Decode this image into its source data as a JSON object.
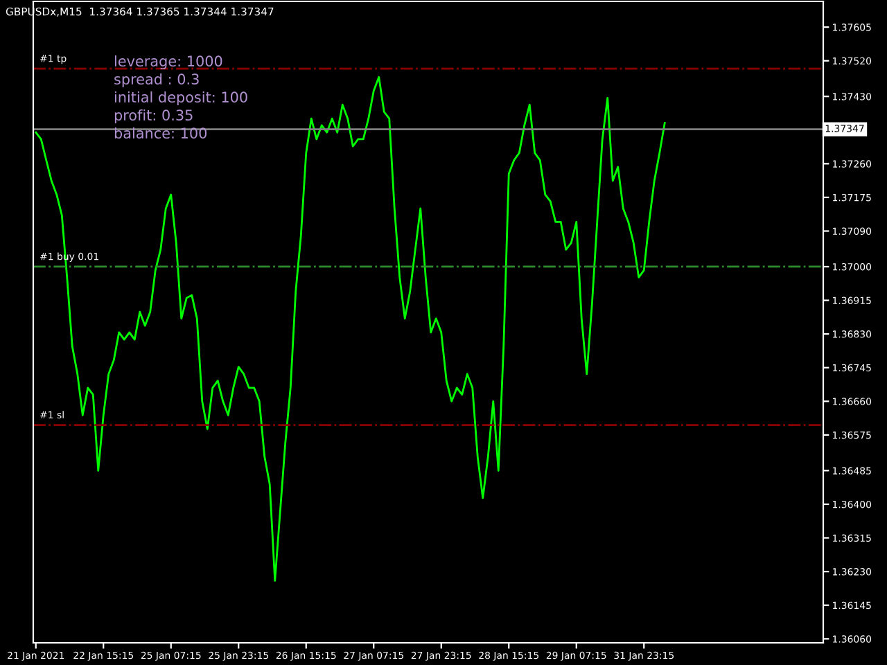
{
  "chart_data": {
    "type": "line",
    "categories": [
      "21 Jan 2021",
      null,
      null,
      null,
      null,
      null,
      null,
      null,
      null,
      null,
      null,
      null,
      null,
      "22 Jan 15:15",
      null,
      null,
      null,
      null,
      null,
      null,
      null,
      null,
      null,
      null,
      null,
      null,
      "25 Jan 07:15",
      null,
      null,
      null,
      null,
      null,
      null,
      null,
      null,
      null,
      null,
      null,
      null,
      "25 Jan 23:15",
      null,
      null,
      null,
      null,
      null,
      null,
      null,
      null,
      null,
      null,
      null,
      null,
      "26 Jan 15:15",
      null,
      null,
      null,
      null,
      null,
      null,
      null,
      null,
      null,
      null,
      null,
      null,
      "27 Jan 07:15",
      null,
      null,
      null,
      null,
      null,
      null,
      null,
      null,
      null,
      null,
      null,
      null,
      "27 Jan 23:15",
      null,
      null,
      null,
      null,
      null,
      null,
      null,
      null,
      null,
      null,
      null,
      null,
      "28 Jan 15:15",
      null,
      null,
      null,
      null,
      null,
      null,
      null,
      null,
      null,
      null,
      null,
      null,
      "29 Jan 07:15",
      null,
      null,
      null,
      null,
      null,
      null,
      null,
      null,
      null,
      null,
      null,
      null,
      "31 Jan 23:15",
      null,
      null,
      null,
      null,
      null,
      null,
      null,
      null,
      null,
      null,
      null,
      null,
      null,
      null,
      null,
      null,
      null,
      null,
      null,
      null,
      null,
      null,
      null,
      null,
      null,
      null,
      null,
      null,
      null,
      null,
      null,
      null,
      null,
      null
    ],
    "series": [
      {
        "color": "#00ff00",
        "values": [
          1.37339,
          1.37322,
          1.37269,
          1.37217,
          1.37182,
          1.3713,
          1.36973,
          1.36799,
          1.36729,
          1.36625,
          1.36694,
          1.36677,
          1.36485,
          1.36625,
          1.36729,
          1.36764,
          1.36834,
          1.36816,
          1.36834,
          1.36816,
          1.36886,
          1.36851,
          1.36886,
          1.36991,
          1.37043,
          1.37147,
          1.37182,
          1.3706,
          1.36869,
          1.36921,
          1.36928,
          1.36869,
          1.3666,
          1.3659,
          1.36694,
          1.36712,
          1.3666,
          1.36625,
          1.36694,
          1.36747,
          1.36729,
          1.36694,
          1.36694,
          1.3666,
          1.3652,
          1.3645,
          1.36207,
          1.36381,
          1.36555,
          1.36694,
          1.36938,
          1.37078,
          1.37287,
          1.37374,
          1.37322,
          1.37357,
          1.37339,
          1.37374,
          1.37339,
          1.37409,
          1.37374,
          1.37304,
          1.37322,
          1.37322,
          1.37374,
          1.37444,
          1.37479,
          1.37391,
          1.37374,
          1.37147,
          1.36973,
          1.36869,
          1.36938,
          1.37043,
          1.37147,
          1.36973,
          1.36834,
          1.36869,
          1.36834,
          1.36712,
          1.3666,
          1.36694,
          1.36677,
          1.36729,
          1.36694,
          1.3652,
          1.36416,
          1.3652,
          1.3666,
          1.36485,
          1.36799,
          1.37235,
          1.37269,
          1.37287,
          1.37357,
          1.37409,
          1.37287,
          1.37269,
          1.37182,
          1.37165,
          1.37113,
          1.37113,
          1.37043,
          1.3706,
          1.37113,
          1.36869,
          1.36729,
          1.36904,
          1.37113,
          1.37322,
          1.37426,
          1.37217,
          1.37252,
          1.37147,
          1.37113,
          1.3706,
          1.36973,
          1.36991,
          1.37113,
          1.37217,
          1.37287,
          1.37363,
          null,
          null,
          null,
          null,
          null,
          null,
          null,
          null,
          null,
          null,
          null,
          null,
          null,
          null,
          null,
          null,
          null,
          null,
          null,
          null,
          null,
          null,
          null,
          null,
          null,
          null,
          null,
          null,
          null,
          null
        ]
      }
    ],
    "ylim": [
      1.3605,
      1.3767
    ],
    "yticks": [
      1.37605,
      {
        "value": 1.3752,
        "label": "1.37520"
      },
      {
        "value": 1.3743,
        "label": "1.37430"
      },
      {
        "value": 1.3726,
        "label": "1.37260"
      },
      1.37175,
      {
        "value": 1.3709,
        "label": "1.37090"
      },
      {
        "value": 1.37,
        "label": "1.37000"
      },
      1.36915,
      {
        "value": 1.3683,
        "label": "1.36830"
      },
      1.36745,
      {
        "value": 1.3666,
        "label": "1.36660"
      },
      1.36575,
      1.36485,
      {
        "value": 1.364,
        "label": "1.36400"
      },
      1.36315,
      {
        "value": 1.3623,
        "label": "1.36230"
      },
      1.36145,
      {
        "value": 1.3606,
        "label": "1.36060"
      }
    ],
    "ref_lines": [
      {
        "axis": "y",
        "value": 1.375,
        "label": "#1 tp",
        "color": "#8b0000",
        "line_style": "dashdot"
      },
      {
        "axis": "y",
        "value": 1.37,
        "label": "#1 buy 0.01",
        "color": "#2e8b2e",
        "line_style": "dashdot"
      },
      {
        "axis": "y",
        "value": 1.366,
        "label": "#1 sl",
        "color": "#8b0000",
        "line_style": "dashdot"
      },
      {
        "axis": "y",
        "value": 1.37347,
        "label": "1.37347",
        "color": "#808080",
        "line_style": "solid"
      }
    ],
    "annotations": [
      "GBPUSDx,M15  1.37364 1.37365 1.37344 1.37347",
      "leverage: 1000",
      "spread : 0.3",
      "initial deposit: 100",
      "profit: 0.35",
      "balance: 100"
    ],
    "grid": false,
    "legend": false,
    "marker": "none",
    "line_style": "solid"
  }
}
